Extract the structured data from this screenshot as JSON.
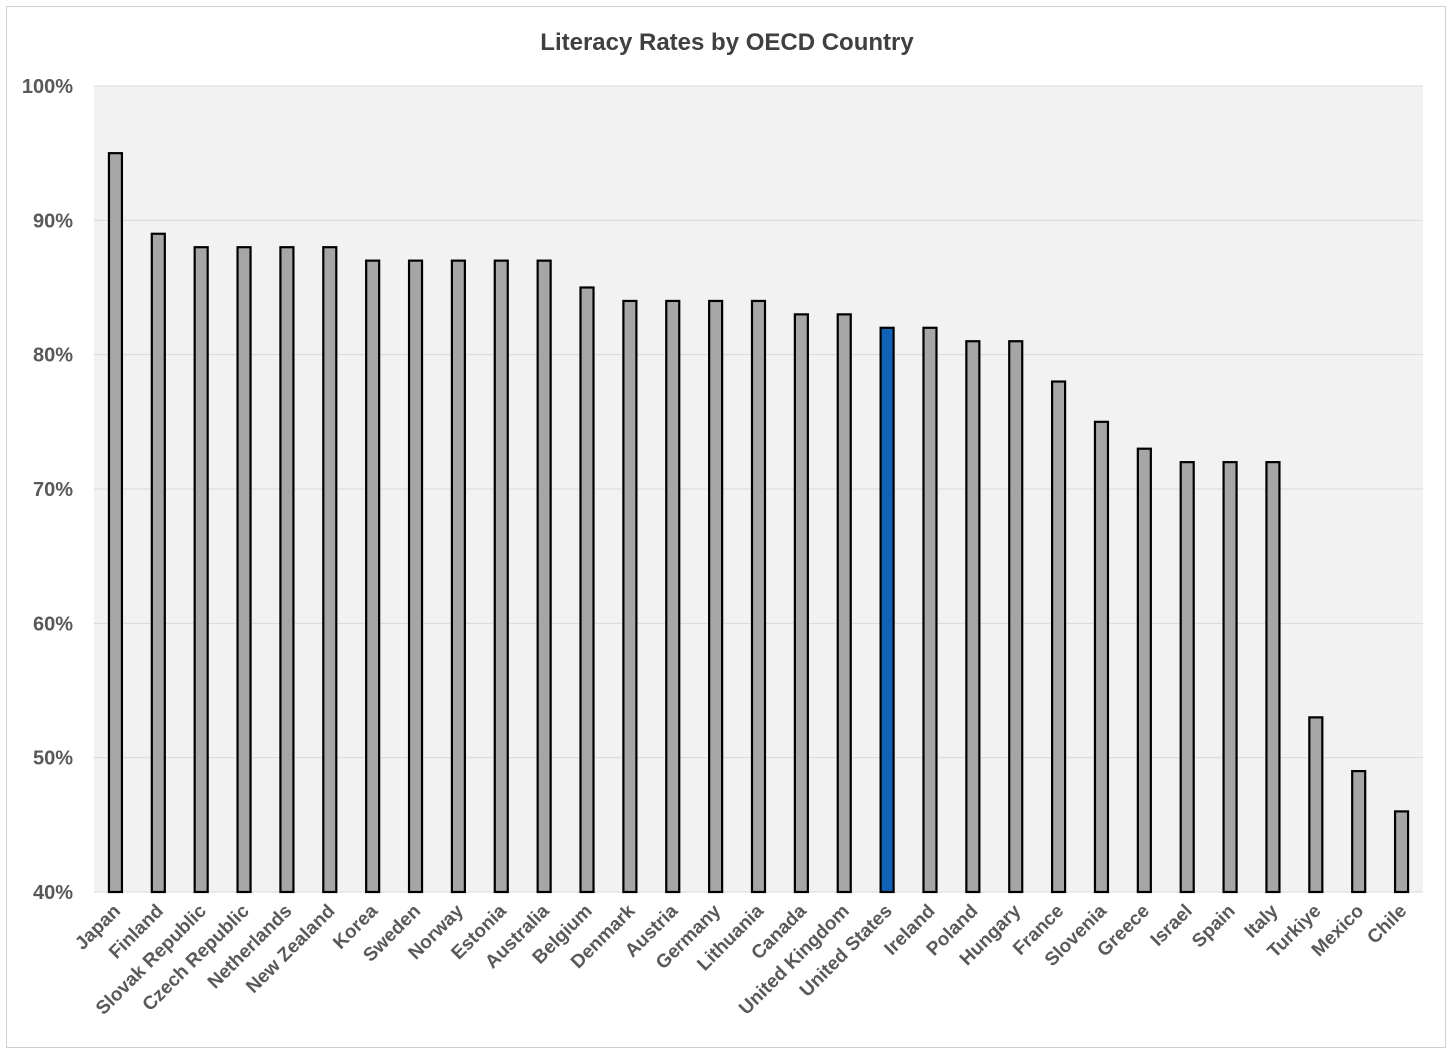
{
  "chart_data": {
    "type": "bar",
    "title": "Literacy Rates by OECD Country",
    "xlabel": "",
    "ylabel": "",
    "ylim": [
      40,
      100
    ],
    "yticks": [
      40,
      50,
      60,
      70,
      80,
      90,
      100
    ],
    "ytick_labels": [
      "40%",
      "50%",
      "60%",
      "70%",
      "80%",
      "90%",
      "100%"
    ],
    "grid": true,
    "legend": "none",
    "colors": {
      "bar_default": "#a6a6a6",
      "bar_highlight": "#0f62b5",
      "bar_outline": "#000000",
      "plot_background": "#f2f2f2",
      "gridline": "#d9d9d9"
    },
    "highlight_category": "United States",
    "categories": [
      "Japan",
      "Finland",
      "Slovak Republic",
      "Czech Republic",
      "Netherlands",
      "New Zealand",
      "Korea",
      "Sweden",
      "Norway",
      "Estonia",
      "Australia",
      "Belgium",
      "Denmark",
      "Austria",
      "Germany",
      "Lithuania",
      "Canada",
      "United Kingdom",
      "United States",
      "Ireland",
      "Poland",
      "Hungary",
      "France",
      "Slovenia",
      "Greece",
      "Israel",
      "Spain",
      "Italy",
      "Turkiye",
      "Mexico",
      "Chile"
    ],
    "values": [
      95,
      89,
      88,
      88,
      88,
      88,
      87,
      87,
      87,
      87,
      87,
      85,
      84,
      84,
      84,
      84,
      83,
      83,
      82,
      82,
      81,
      81,
      78,
      75,
      73,
      72,
      72,
      72,
      53,
      49,
      46
    ]
  }
}
